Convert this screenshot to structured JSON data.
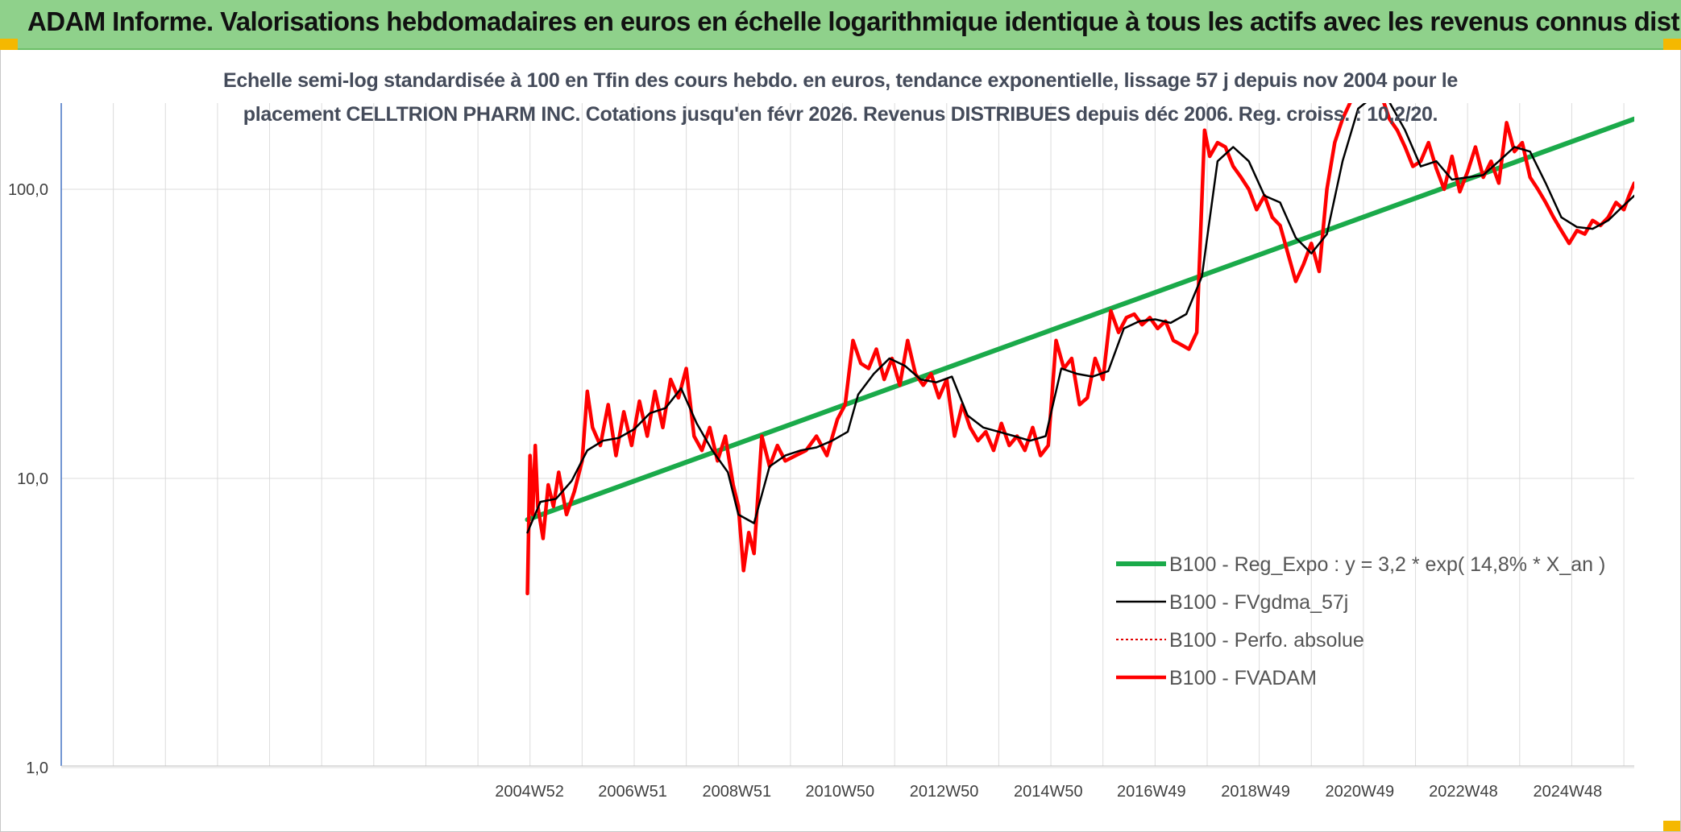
{
  "header": {
    "title": "ADAM Informe. Valorisations hebdomadaires en euros en échelle logarithmique identique à tous les actifs avec les revenus connus distribués"
  },
  "colors": {
    "banner": "#8fd18b",
    "reg_expo": "#1aaa4a",
    "fvgdma": "#000000",
    "perfo": "#e00000",
    "fvadam": "#ff0000",
    "accent_corner": "#f5b800"
  },
  "chart_data": {
    "type": "line",
    "title_line1": "Echelle semi-log standardisée à 100 en Tfin des cours hebdo. en euros, tendance exponentielle, lissage 57 j depuis nov 2004 pour le",
    "title_line2": "placement CELLTRION PHARM INC. Cotations jusqu'en févr 2026. Revenus DISTRIBUES depuis déc 2006. Reg. croiss. : 10,2/20.",
    "y_scale": "log",
    "ylim": [
      1,
      200
    ],
    "y_ticks": [
      {
        "value": 1,
        "label": "1,0"
      },
      {
        "value": 10,
        "label": "10,0"
      },
      {
        "value": 100,
        "label": "100,0"
      }
    ],
    "x_range": [
      1996.0,
      2026.2
    ],
    "x_tick_labels": [
      {
        "x": 2004.99,
        "label": "2004W52"
      },
      {
        "x": 2006.97,
        "label": "2006W51"
      },
      {
        "x": 2008.97,
        "label": "2008W51"
      },
      {
        "x": 2010.95,
        "label": "2010W50"
      },
      {
        "x": 2012.95,
        "label": "2012W50"
      },
      {
        "x": 2014.95,
        "label": "2014W50"
      },
      {
        "x": 2016.93,
        "label": "2016W49"
      },
      {
        "x": 2018.93,
        "label": "2018W49"
      },
      {
        "x": 2020.93,
        "label": "2020W49"
      },
      {
        "x": 2022.92,
        "label": "2022W48"
      },
      {
        "x": 2024.92,
        "label": "2024W48"
      }
    ],
    "x_gridlines": [
      1997,
      1998,
      1999,
      2000,
      2001,
      2002,
      2003,
      2004,
      2005,
      2006,
      2007,
      2008,
      2009,
      2010,
      2011,
      2012,
      2013,
      2014,
      2015,
      2016,
      2017,
      2018,
      2019,
      2020,
      2021,
      2022,
      2023,
      2024,
      2025,
      2026
    ],
    "grid": true,
    "legend_position": "bottom-right",
    "series": [
      {
        "name": "B100 - Reg_Expo : y = 3,2 * exp( 14,8% *  X_an )",
        "style": "thick",
        "x": [
          2004.95,
          2026.2
        ],
        "y": [
          7.2,
          175
        ]
      },
      {
        "name": "B100 - FVgdma_57j",
        "style": "thin",
        "x": [
          2004.95,
          2005.2,
          2005.5,
          2005.8,
          2006.1,
          2006.4,
          2006.7,
          2007.0,
          2007.3,
          2007.6,
          2007.9,
          2008.2,
          2008.5,
          2008.8,
          2009.0,
          2009.3,
          2009.6,
          2009.9,
          2010.2,
          2010.5,
          2010.8,
          2011.1,
          2011.3,
          2011.6,
          2011.9,
          2012.2,
          2012.5,
          2012.8,
          2013.1,
          2013.4,
          2013.7,
          2014.0,
          2014.3,
          2014.6,
          2014.9,
          2015.2,
          2015.5,
          2015.8,
          2016.1,
          2016.4,
          2016.7,
          2017.0,
          2017.3,
          2017.6,
          2017.9,
          2018.2,
          2018.5,
          2018.8,
          2019.1,
          2019.4,
          2019.7,
          2020.0,
          2020.3,
          2020.6,
          2020.9,
          2021.2,
          2021.5,
          2021.8,
          2022.1,
          2022.4,
          2022.7,
          2023.0,
          2023.3,
          2023.6,
          2023.9,
          2024.2,
          2024.5,
          2024.8,
          2025.1,
          2025.4,
          2025.7,
          2026.0,
          2026.2
        ],
        "y": [
          6.5,
          8.3,
          8.5,
          9.8,
          12.5,
          13.5,
          13.8,
          14.8,
          16.8,
          17.5,
          20.5,
          15.5,
          12.5,
          10.5,
          7.5,
          7.0,
          11.0,
          12.0,
          12.5,
          12.8,
          13.5,
          14.5,
          19.5,
          23.0,
          26.0,
          24.5,
          22.0,
          21.5,
          22.5,
          16.5,
          15.0,
          14.5,
          14.0,
          13.5,
          14.0,
          24.0,
          23.0,
          22.5,
          23.5,
          33.0,
          35.0,
          35.5,
          34.5,
          37.0,
          50.0,
          125.0,
          140.0,
          125.0,
          95.0,
          90.0,
          68.0,
          60.0,
          70.0,
          125.0,
          190.0,
          210.0,
          200.0,
          160.0,
          120.0,
          125.0,
          108.0,
          110.0,
          112.0,
          125.0,
          140.0,
          135.0,
          105.0,
          80.0,
          74.0,
          73.0,
          78.0,
          88.0,
          95.0
        ]
      },
      {
        "name": "B100 - Perfo. absolue",
        "style": "dotted",
        "x": [],
        "y": []
      },
      {
        "name": "B100 - FVADAM",
        "style": "thick",
        "x": [
          2004.95,
          2005.0,
          2005.05,
          2005.1,
          2005.15,
          2005.25,
          2005.35,
          2005.45,
          2005.55,
          2005.7,
          2005.85,
          2006.0,
          2006.1,
          2006.2,
          2006.35,
          2006.5,
          2006.65,
          2006.8,
          2006.95,
          2007.1,
          2007.25,
          2007.4,
          2007.55,
          2007.7,
          2007.85,
          2008.0,
          2008.15,
          2008.3,
          2008.45,
          2008.6,
          2008.75,
          2008.9,
          2009.0,
          2009.1,
          2009.2,
          2009.3,
          2009.45,
          2009.6,
          2009.75,
          2009.9,
          2010.1,
          2010.3,
          2010.5,
          2010.7,
          2010.9,
          2011.05,
          2011.2,
          2011.35,
          2011.5,
          2011.65,
          2011.8,
          2011.95,
          2012.1,
          2012.25,
          2012.4,
          2012.55,
          2012.7,
          2012.85,
          2013.0,
          2013.15,
          2013.3,
          2013.45,
          2013.6,
          2013.75,
          2013.9,
          2014.05,
          2014.2,
          2014.35,
          2014.5,
          2014.65,
          2014.8,
          2014.95,
          2015.1,
          2015.25,
          2015.4,
          2015.55,
          2015.7,
          2015.85,
          2016.0,
          2016.15,
          2016.3,
          2016.45,
          2016.6,
          2016.75,
          2016.9,
          2017.05,
          2017.2,
          2017.35,
          2017.5,
          2017.65,
          2017.8,
          2017.95,
          2018.05,
          2018.2,
          2018.35,
          2018.5,
          2018.65,
          2018.8,
          2018.95,
          2019.1,
          2019.25,
          2019.4,
          2019.55,
          2019.7,
          2019.85,
          2020.0,
          2020.15,
          2020.3,
          2020.45,
          2020.6,
          2020.75,
          2020.9,
          2021.05,
          2021.2,
          2021.35,
          2021.5,
          2021.65,
          2021.8,
          2021.95,
          2022.1,
          2022.25,
          2022.4,
          2022.55,
          2022.7,
          2022.85,
          2023.0,
          2023.15,
          2023.3,
          2023.45,
          2023.6,
          2023.75,
          2023.9,
          2024.05,
          2024.2,
          2024.35,
          2024.5,
          2024.65,
          2024.8,
          2024.95,
          2025.1,
          2025.25,
          2025.4,
          2025.55,
          2025.7,
          2025.85,
          2026.0,
          2026.1,
          2026.2
        ],
        "y": [
          4.0,
          12.0,
          7.5,
          13.0,
          8.0,
          6.2,
          9.5,
          8.0,
          10.5,
          7.5,
          9.0,
          11.5,
          20.0,
          15.0,
          13.0,
          18.0,
          12.0,
          17.0,
          13.0,
          18.5,
          14.0,
          20.0,
          15.0,
          22.0,
          19.0,
          24.0,
          14.0,
          12.5,
          15.0,
          11.5,
          14.0,
          9.5,
          8.0,
          4.8,
          6.5,
          5.5,
          14.0,
          11.0,
          13.0,
          11.5,
          12.0,
          12.5,
          14.0,
          12.0,
          16.0,
          18.0,
          30.0,
          25.0,
          24.0,
          28.0,
          22.0,
          26.0,
          21.0,
          30.0,
          23.0,
          21.0,
          23.0,
          19.0,
          22.0,
          14.0,
          18.0,
          15.0,
          13.5,
          14.5,
          12.5,
          15.5,
          13.0,
          14.0,
          12.5,
          15.0,
          12.0,
          13.0,
          30.0,
          24.0,
          26.0,
          18.0,
          19.0,
          26.0,
          22.0,
          38.0,
          32.0,
          36.0,
          37.0,
          34.0,
          36.0,
          33.0,
          35.0,
          30.0,
          29.0,
          28.0,
          32.0,
          160.0,
          130.0,
          145.0,
          140.0,
          120.0,
          110.0,
          100.0,
          85.0,
          95.0,
          80.0,
          75.0,
          60.0,
          48.0,
          55.0,
          65.0,
          52.0,
          100.0,
          145.0,
          175.0,
          200.0,
          230.0,
          260.0,
          240.0,
          210.0,
          175.0,
          160.0,
          140.0,
          120.0,
          125.0,
          145.0,
          118.0,
          100.0,
          130.0,
          98.0,
          115.0,
          140.0,
          110.0,
          125.0,
          105.0,
          170.0,
          135.0,
          145.0,
          110.0,
          100.0,
          90.0,
          80.0,
          72.0,
          65.0,
          72.0,
          70.0,
          78.0,
          75.0,
          80.0,
          90.0,
          85.0,
          95.0,
          105.0
        ]
      }
    ]
  }
}
